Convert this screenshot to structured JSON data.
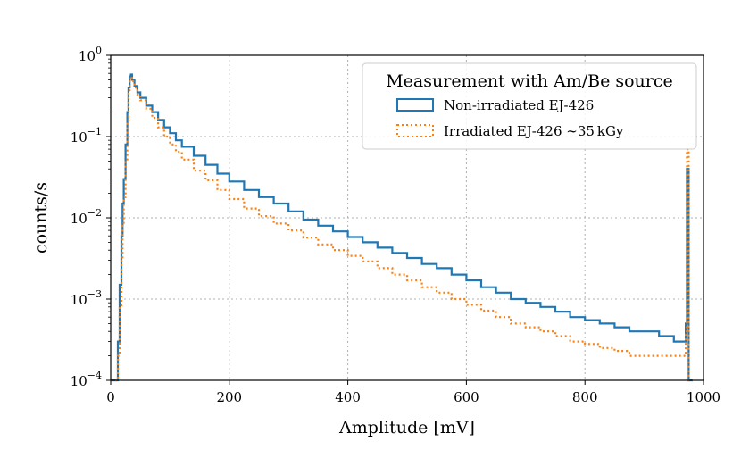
{
  "chart_data": {
    "type": "line",
    "plot_style": "step histogram",
    "title": "",
    "xlabel": "Amplitude [mV]",
    "ylabel": "counts/s",
    "xlim": [
      0,
      1000
    ],
    "ylim": [
      0.0001,
      1
    ],
    "yscale": "log",
    "grid": true,
    "x_ticks": [
      0,
      200,
      400,
      600,
      800,
      1000
    ],
    "x_tick_labels": [
      "0",
      "200",
      "400",
      "600",
      "800",
      "1000"
    ],
    "y_ticks": [
      {
        "value": 1,
        "base": "10",
        "exp": "0"
      },
      {
        "value": 0.1,
        "base": "10",
        "exp": "−1"
      },
      {
        "value": 0.01,
        "base": "10",
        "exp": "−2"
      },
      {
        "value": 0.001,
        "base": "10",
        "exp": "−3"
      },
      {
        "value": 0.0001,
        "base": "10",
        "exp": "−4"
      }
    ],
    "legend": {
      "title": "Measurement with Am/Be source",
      "position": "top-right"
    },
    "series": [
      {
        "name": "Non-irradiated EJ-426",
        "color": "#1f77b4",
        "style": "solid",
        "x": [
          0,
          8,
          12,
          15,
          18,
          20,
          22,
          25,
          28,
          30,
          32,
          34,
          36,
          40,
          45,
          50,
          60,
          70,
          80,
          90,
          100,
          110,
          120,
          140,
          160,
          180,
          200,
          225,
          250,
          275,
          300,
          325,
          350,
          375,
          400,
          425,
          450,
          475,
          500,
          525,
          550,
          575,
          600,
          625,
          650,
          675,
          700,
          725,
          750,
          775,
          800,
          825,
          850,
          875,
          900,
          925,
          950,
          965,
          970,
          972,
          975,
          980
        ],
        "values": [
          0.0001,
          0.0001,
          0.0003,
          0.0015,
          0.006,
          0.015,
          0.03,
          0.08,
          0.2,
          0.4,
          0.55,
          0.58,
          0.5,
          0.42,
          0.35,
          0.3,
          0.24,
          0.2,
          0.16,
          0.13,
          0.11,
          0.09,
          0.075,
          0.058,
          0.045,
          0.035,
          0.028,
          0.022,
          0.018,
          0.015,
          0.012,
          0.0095,
          0.008,
          0.0068,
          0.0058,
          0.005,
          0.0043,
          0.0037,
          0.0032,
          0.0027,
          0.0024,
          0.002,
          0.0017,
          0.0014,
          0.0012,
          0.001,
          0.0009,
          0.0008,
          0.0007,
          0.0006,
          0.00055,
          0.0005,
          0.00045,
          0.0004,
          0.0004,
          0.00035,
          0.0003,
          0.0003,
          0.0005,
          0.04,
          0.0001,
          0.0001
        ]
      },
      {
        "name": "Irradiated EJ-426 ∼35 kGy",
        "color": "#ff7f0e",
        "style": "dotted",
        "x": [
          0,
          8,
          12,
          15,
          18,
          20,
          22,
          25,
          28,
          30,
          32,
          34,
          36,
          40,
          45,
          50,
          60,
          70,
          80,
          90,
          100,
          110,
          120,
          140,
          160,
          180,
          200,
          225,
          250,
          275,
          300,
          325,
          350,
          375,
          400,
          425,
          450,
          475,
          500,
          525,
          550,
          575,
          600,
          625,
          650,
          675,
          700,
          725,
          750,
          775,
          800,
          825,
          850,
          875,
          900,
          925,
          950,
          965,
          970,
          972,
          975,
          980
        ],
        "values": [
          0.0001,
          0.0001,
          0.0002,
          0.0008,
          0.003,
          0.008,
          0.018,
          0.05,
          0.15,
          0.35,
          0.5,
          0.55,
          0.48,
          0.4,
          0.33,
          0.28,
          0.22,
          0.17,
          0.13,
          0.1,
          0.08,
          0.065,
          0.052,
          0.038,
          0.029,
          0.022,
          0.017,
          0.013,
          0.0105,
          0.0085,
          0.007,
          0.0057,
          0.0047,
          0.004,
          0.0034,
          0.0029,
          0.0024,
          0.002,
          0.0017,
          0.0014,
          0.0012,
          0.001,
          0.00085,
          0.00072,
          0.0006,
          0.0005,
          0.00045,
          0.0004,
          0.00035,
          0.0003,
          0.00028,
          0.00025,
          0.00023,
          0.0002,
          0.0002,
          0.0002,
          0.0002,
          0.0002,
          0.0004,
          0.07,
          0.0001,
          0.0001
        ]
      }
    ]
  }
}
